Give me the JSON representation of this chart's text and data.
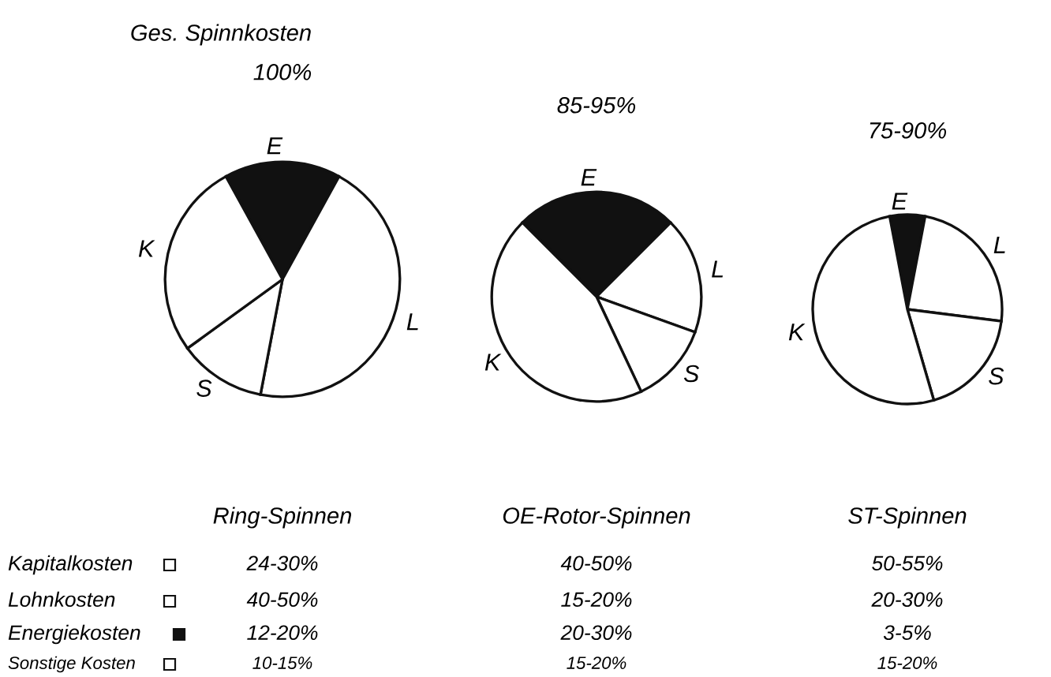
{
  "chart_data": [
    {
      "type": "pie",
      "title": "100%",
      "xlabel": "Ring-Spinnen",
      "categories": [
        "E",
        "L",
        "S",
        "K"
      ],
      "values": [
        16,
        45,
        12,
        27
      ],
      "colors": [
        "#111111",
        "#ffffff",
        "#ffffff",
        "#ffffff"
      ],
      "annotations": [
        "Ges. Spinnkosten",
        "Kapitalkosten",
        "Lohnkosten",
        "Energiekosten",
        "Sonstige Kosten",
        "24-30%",
        "40-50%",
        "12-20%",
        "10-15%"
      ]
    },
    {
      "type": "pie",
      "title": "85-95%",
      "xlabel": "OE-Rotor-Spinnen",
      "categories": [
        "E",
        "L",
        "S",
        "K"
      ],
      "values": [
        25,
        18,
        12.5,
        44.5
      ],
      "colors": [
        "#111111",
        "#ffffff",
        "#ffffff",
        "#ffffff"
      ],
      "annotations": [
        "40-50%",
        "15-20%",
        "20-30%",
        "15-20%"
      ]
    },
    {
      "type": "pie",
      "title": "75-90%",
      "xlabel": "ST-Spinnen",
      "categories": [
        "E",
        "L",
        "S",
        "K"
      ],
      "values": [
        6,
        24,
        18.5,
        51.5
      ],
      "colors": [
        "#111111",
        "#ffffff",
        "#ffffff",
        "#ffffff"
      ],
      "annotations": [
        "50-55%",
        "20-30%",
        "3-5%",
        "15-20%"
      ]
    }
  ]
}
